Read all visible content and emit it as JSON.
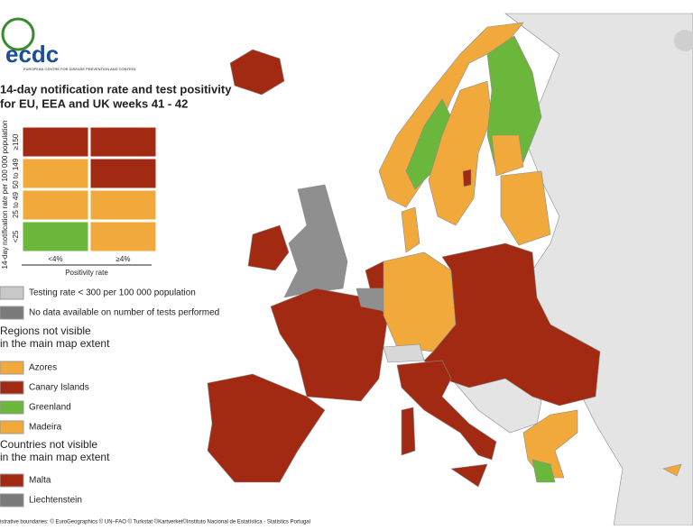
{
  "header": {
    "logo_text": "ecdc",
    "logo_subtext": "EUROPEAN CENTRE FOR DISEASE PREVENTION AND CONTROL",
    "title_line1": "14-day notification rate and test positivity",
    "title_line2": "for EU, EEA and UK weeks 41 - 42"
  },
  "matrix": {
    "y_axis_label": "14-day notification rate per 100 000 population",
    "row_labels": [
      "≥150",
      "50 to 149",
      "25 to 49",
      "<25"
    ],
    "cells": [
      [
        "#a32a12",
        "#a32a12"
      ],
      [
        "#f2a93b",
        "#a32a12"
      ],
      [
        "#f2a93b",
        "#f2a93b"
      ],
      [
        "#6ab73c",
        "#f2a93b"
      ]
    ],
    "x_labels": [
      "<4%",
      "≥4%"
    ],
    "x_axis_label": "Positivity rate"
  },
  "legend": {
    "items": [
      {
        "label": "Testing rate < 300 per 100 000 population",
        "color": "#c8c8c8"
      },
      {
        "label": "No data available on number of tests performed",
        "color": "#7a7a7a"
      }
    ]
  },
  "regions": {
    "title_line1": "Regions not visible",
    "title_line2": "in the main map extent",
    "items": [
      {
        "label": "Azores",
        "color": "#f2a93b"
      },
      {
        "label": "Canary Islands",
        "color": "#a32a12"
      },
      {
        "label": "Greenland",
        "color": "#6ab73c"
      },
      {
        "label": "Madeira",
        "color": "#f2a93b"
      }
    ]
  },
  "countries": {
    "title_line1": "Countries not visible",
    "title_line2": "in the main map extent",
    "items": [
      {
        "label": "Malta",
        "color": "#a32a12"
      },
      {
        "label": "Liechtenstein",
        "color": "#7a7a7a"
      }
    ]
  },
  "footer": "istrative boundaries: © EuroGeographics © UN–FAO © Turkstat ©Kartverket©Instituto Nacional de Estatística - Statistics Portugal"
}
